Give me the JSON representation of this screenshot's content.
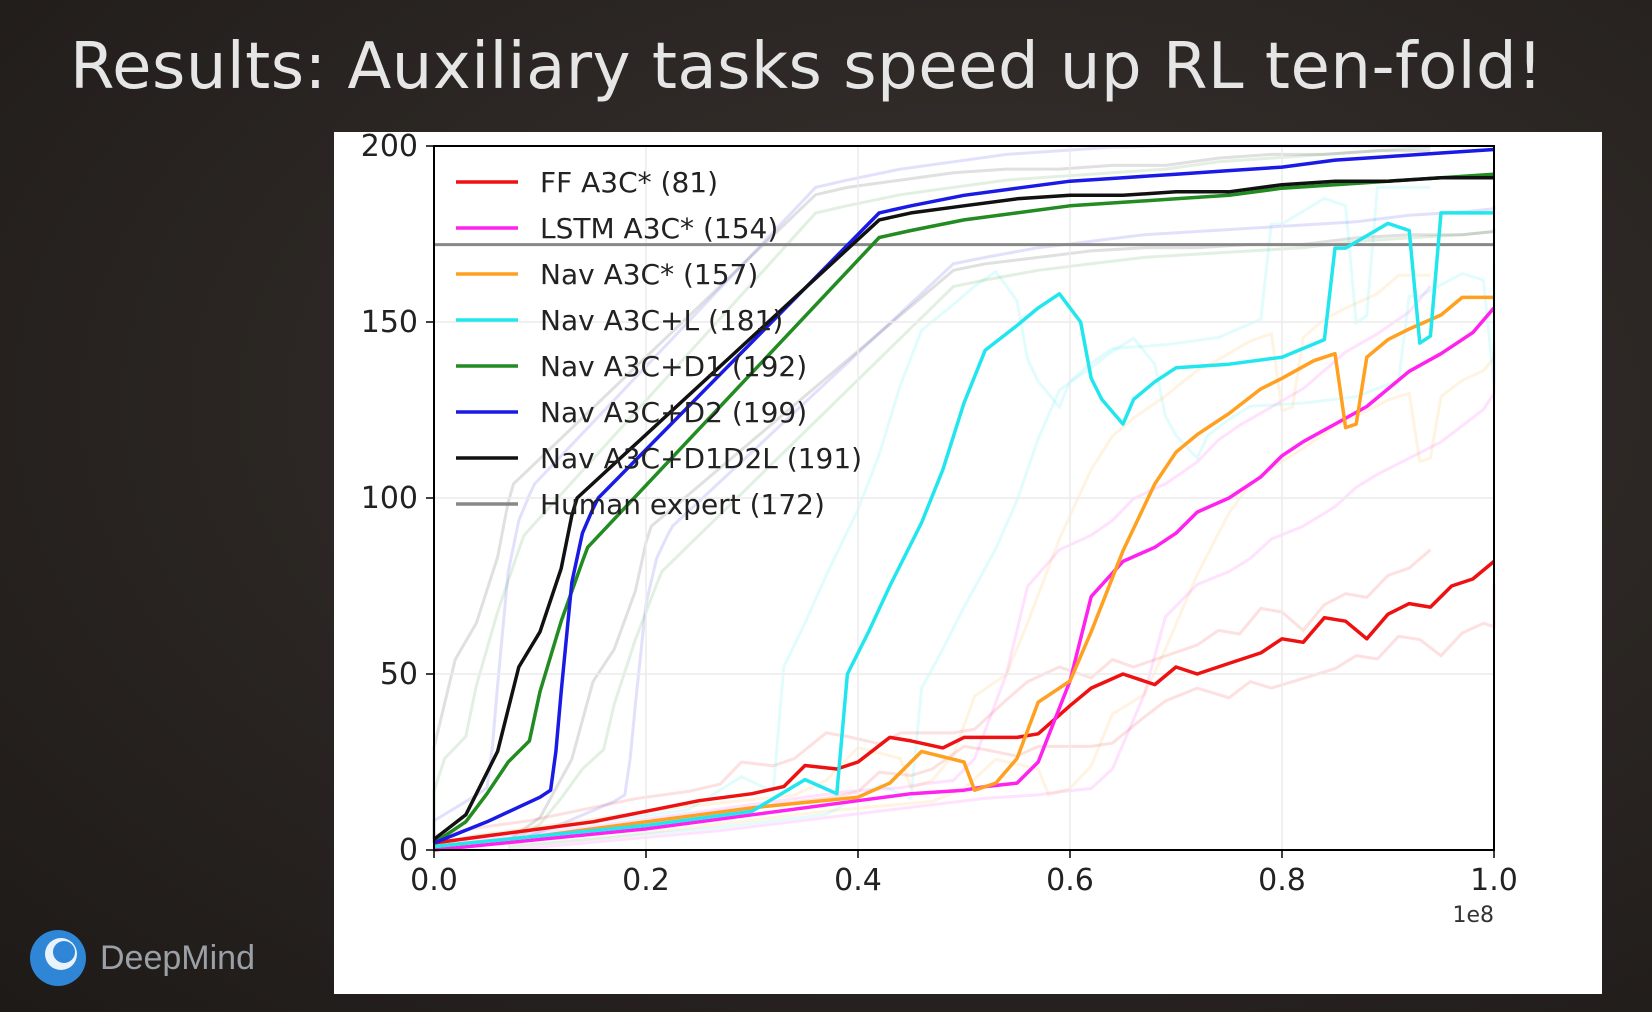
{
  "slide": {
    "title": "Results: Auxiliary tasks speed up RL ten-fold!",
    "brand": "DeepMind"
  },
  "colors": {
    "background": "#2a2522",
    "title": "#e6e6e6",
    "brand_text": "#9aa0a6",
    "brand_logo": "#3b8ed6"
  },
  "chart_data": {
    "type": "line",
    "title": "",
    "xlabel": "",
    "ylabel": "",
    "xlim": [
      0.0,
      1.0
    ],
    "ylim": [
      0,
      200
    ],
    "x_exponent_label": "1e8",
    "x_ticks": [
      "0.0",
      "0.2",
      "0.4",
      "0.6",
      "0.8",
      "1.0"
    ],
    "y_ticks": [
      "0",
      "50",
      "100",
      "150",
      "200"
    ],
    "grid": true,
    "legend_position": "top-left",
    "series": [
      {
        "name": "FF A3C* (81)",
        "color": "#ee1111",
        "x": [
          0.0,
          0.05,
          0.1,
          0.15,
          0.2,
          0.25,
          0.3,
          0.33,
          0.35,
          0.38,
          0.4,
          0.43,
          0.45,
          0.48,
          0.5,
          0.55,
          0.57,
          0.6,
          0.62,
          0.65,
          0.68,
          0.7,
          0.72,
          0.75,
          0.78,
          0.8,
          0.82,
          0.84,
          0.86,
          0.88,
          0.9,
          0.92,
          0.94,
          0.96,
          0.98,
          1.0
        ],
        "y": [
          2,
          4,
          6,
          8,
          11,
          14,
          16,
          18,
          24,
          23,
          25,
          32,
          31,
          29,
          32,
          32,
          33,
          41,
          46,
          50,
          47,
          52,
          50,
          53,
          56,
          60,
          59,
          66,
          65,
          60,
          67,
          70,
          69,
          75,
          77,
          82
        ]
      },
      {
        "name": "LSTM A3C* (154)",
        "color": "#ff22ee",
        "x": [
          0.0,
          0.1,
          0.2,
          0.3,
          0.4,
          0.45,
          0.5,
          0.52,
          0.55,
          0.57,
          0.6,
          0.62,
          0.65,
          0.68,
          0.7,
          0.72,
          0.75,
          0.78,
          0.8,
          0.82,
          0.85,
          0.88,
          0.9,
          0.92,
          0.95,
          0.98,
          1.0
        ],
        "y": [
          0,
          3,
          6,
          10,
          14,
          16,
          17,
          18,
          19,
          25,
          48,
          72,
          82,
          86,
          90,
          96,
          100,
          106,
          112,
          116,
          121,
          126,
          131,
          136,
          141,
          147,
          154
        ]
      },
      {
        "name": "Nav A3C* (157)",
        "color": "#ffa020",
        "x": [
          0.0,
          0.1,
          0.2,
          0.3,
          0.4,
          0.43,
          0.46,
          0.5,
          0.51,
          0.53,
          0.55,
          0.57,
          0.6,
          0.62,
          0.65,
          0.68,
          0.7,
          0.72,
          0.75,
          0.78,
          0.8,
          0.83,
          0.85,
          0.86,
          0.87,
          0.88,
          0.9,
          0.92,
          0.95,
          0.97,
          1.0
        ],
        "y": [
          1,
          4,
          8,
          12,
          15,
          19,
          28,
          25,
          17,
          19,
          26,
          42,
          48,
          62,
          85,
          104,
          113,
          118,
          124,
          131,
          134,
          139,
          141,
          120,
          121,
          140,
          145,
          148,
          152,
          157,
          157
        ]
      },
      {
        "name": "Nav A3C+L (181)",
        "color": "#22e6ee",
        "x": [
          0.0,
          0.1,
          0.2,
          0.3,
          0.35,
          0.38,
          0.39,
          0.41,
          0.43,
          0.46,
          0.48,
          0.5,
          0.52,
          0.55,
          0.57,
          0.59,
          0.61,
          0.62,
          0.63,
          0.65,
          0.66,
          0.68,
          0.7,
          0.75,
          0.8,
          0.84,
          0.85,
          0.86,
          0.9,
          0.92,
          0.93,
          0.94,
          0.95,
          0.97,
          1.0
        ],
        "y": [
          1,
          4,
          7,
          11,
          20,
          16,
          50,
          62,
          75,
          93,
          108,
          127,
          142,
          149,
          154,
          158,
          150,
          134,
          128,
          121,
          128,
          133,
          137,
          138,
          140,
          145,
          171,
          171,
          178,
          176,
          144,
          146,
          181,
          181,
          181
        ]
      },
      {
        "name": "Nav A3C+D1 (192)",
        "color": "#228B22",
        "x": [
          0.0,
          0.03,
          0.05,
          0.07,
          0.09,
          0.1,
          0.12,
          0.14,
          0.145,
          0.42,
          0.45,
          0.5,
          0.55,
          0.6,
          0.65,
          0.7,
          0.75,
          0.8,
          0.85,
          0.9,
          0.95,
          1.0
        ],
        "y": [
          2,
          8,
          16,
          25,
          31,
          45,
          65,
          82,
          86,
          174,
          176,
          179,
          181,
          183,
          184,
          185,
          186,
          188,
          189,
          190,
          191,
          192
        ]
      },
      {
        "name": "Nav A3C+D2 (199)",
        "color": "#1a1ae6",
        "x": [
          0.0,
          0.05,
          0.1,
          0.11,
          0.115,
          0.12,
          0.13,
          0.14,
          0.15,
          0.155,
          0.42,
          0.45,
          0.5,
          0.55,
          0.6,
          0.65,
          0.7,
          0.75,
          0.8,
          0.85,
          0.9,
          0.95,
          1.0
        ],
        "y": [
          2,
          8,
          15,
          17,
          28,
          45,
          76,
          90,
          97,
          100,
          181,
          183,
          186,
          188,
          190,
          191,
          192,
          193,
          194,
          196,
          197,
          198,
          199
        ]
      },
      {
        "name": "Nav A3C+D1D2L (191)",
        "color": "#111111",
        "x": [
          0.0,
          0.03,
          0.06,
          0.08,
          0.1,
          0.12,
          0.13,
          0.135,
          0.42,
          0.45,
          0.5,
          0.55,
          0.6,
          0.65,
          0.7,
          0.75,
          0.8,
          0.85,
          0.9,
          0.95,
          1.0
        ],
        "y": [
          3,
          10,
          28,
          52,
          62,
          80,
          95,
          100,
          179,
          181,
          183,
          185,
          186,
          186,
          187,
          187,
          189,
          190,
          190,
          191,
          191
        ]
      },
      {
        "name": "Human expert (172)",
        "color": "#888888",
        "x": [
          0.0,
          1.0
        ],
        "y": [
          172,
          172
        ]
      }
    ]
  }
}
